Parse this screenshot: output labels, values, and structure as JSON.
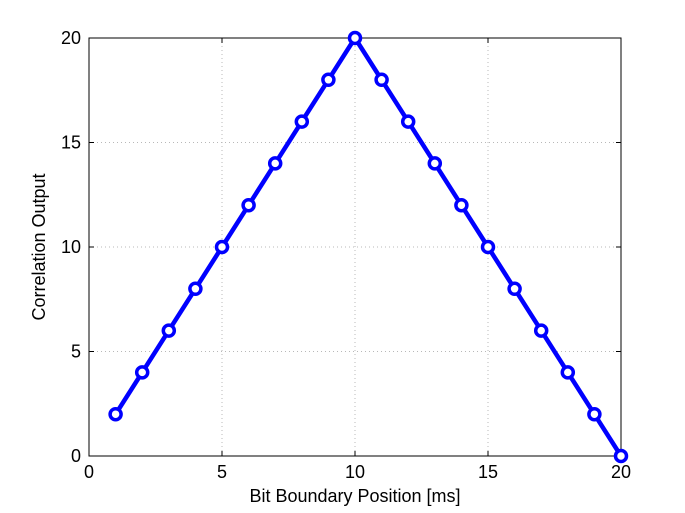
{
  "chart_data": {
    "type": "line",
    "title": "",
    "xlabel": "Bit Boundary Position [ms]",
    "ylabel": "Correlation Output",
    "xlim": [
      0,
      20
    ],
    "ylim": [
      0,
      20
    ],
    "xticks": [
      0,
      5,
      10,
      15,
      20
    ],
    "yticks": [
      0,
      5,
      10,
      15,
      20
    ],
    "grid": true,
    "series": [
      {
        "color": "#0000ff",
        "marker": "circle",
        "x": [
          1,
          2,
          3,
          4,
          5,
          6,
          7,
          8,
          9,
          10,
          11,
          12,
          13,
          14,
          15,
          16,
          17,
          18,
          19,
          20
        ],
        "y": [
          2,
          4,
          6,
          8,
          10,
          12,
          14,
          16,
          18,
          20,
          18,
          16,
          14,
          12,
          10,
          8,
          6,
          4,
          2,
          0
        ]
      }
    ]
  }
}
